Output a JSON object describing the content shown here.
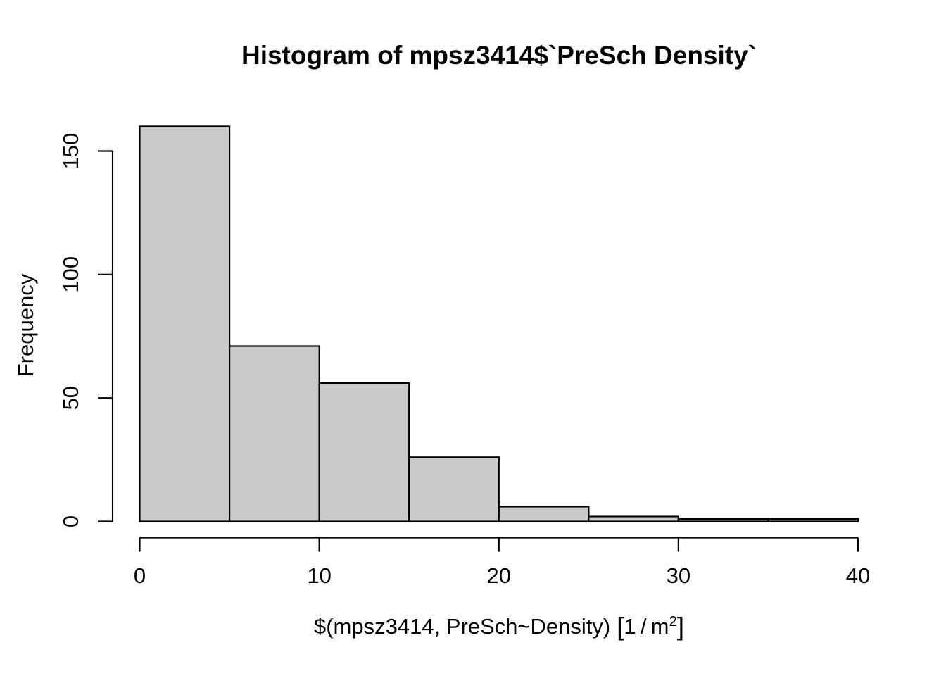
{
  "chart_data": {
    "type": "bar",
    "chart_kind": "histogram",
    "title": "Histogram of mpsz3414$`PreSch Density`",
    "xlabel": "$(mpsz3414, PreSch~Density) [1/m^2]",
    "ylabel": "Frequency",
    "xlabel_parts": {
      "main": "$(mpsz3414, PreSch~Density)",
      "unit_open": "[",
      "unit_base": "1 / m",
      "unit_exp": "2",
      "unit_close": "]"
    },
    "breaks": [
      0,
      5,
      10,
      15,
      20,
      25,
      30,
      35,
      40
    ],
    "counts": [
      160,
      71,
      56,
      26,
      6,
      2,
      1,
      1
    ],
    "x_tick_labels": [
      "0",
      "10",
      "20",
      "30",
      "40"
    ],
    "x_tick_values": [
      0,
      10,
      20,
      30,
      40
    ],
    "y_tick_labels": [
      "0",
      "50",
      "100",
      "150"
    ],
    "y_tick_values": [
      0,
      50,
      100,
      150
    ],
    "xlim": [
      0,
      40
    ],
    "ylim": [
      0,
      160
    ],
    "grid": false,
    "legend": null,
    "bar_fill": "#c9c9c9",
    "bar_stroke": "#000000",
    "axis_color": "#000000",
    "text_color": "#000000",
    "background": "#ffffff"
  }
}
